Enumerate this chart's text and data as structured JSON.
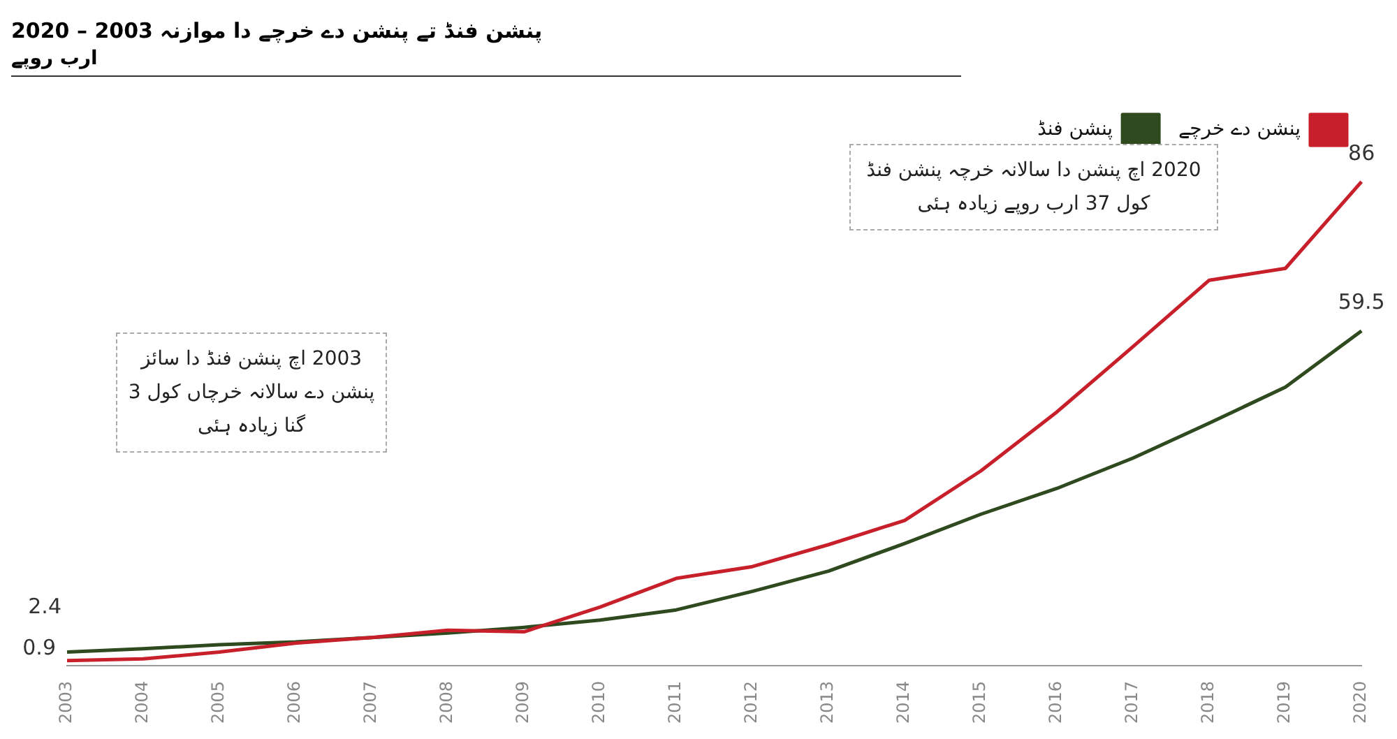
{
  "chart_data": {
    "type": "line",
    "title": "پنشن فنڈ تے پنشن دے خرچے دا موازنہ   2003 – 2020",
    "subtitle": "ارب روپے",
    "categories": [
      "2003",
      "2004",
      "2005",
      "2006",
      "2007",
      "2008",
      "2009",
      "2010",
      "2011",
      "2012",
      "2013",
      "2014",
      "2015",
      "2016",
      "2017",
      "2018",
      "2019",
      "2020"
    ],
    "series": [
      {
        "name": "پنشن دے خرچے",
        "color": "#c8202a",
        "values": [
          0.9,
          1.2,
          2.4,
          4,
          5,
          6.3,
          6,
          10.4,
          15.5,
          17.6,
          21.5,
          25.8,
          34.6,
          45.1,
          56.7,
          68.5,
          70.6,
          86
        ],
        "value_labels": [
          "0.9",
          null,
          null,
          null,
          null,
          null,
          null,
          null,
          null,
          null,
          null,
          null,
          null,
          null,
          null,
          null,
          null,
          "86"
        ]
      },
      {
        "name": "پنشن فنڈ",
        "color": "#2e4a1e",
        "values": [
          2.4,
          3,
          3.7,
          4.2,
          5,
          5.8,
          6.8,
          8.1,
          9.9,
          13.2,
          16.8,
          21.7,
          26.9,
          31.5,
          36.9,
          43.1,
          49.5,
          59.5
        ],
        "value_labels": [
          "2.4",
          null,
          null,
          null,
          null,
          null,
          null,
          null,
          null,
          null,
          null,
          null,
          null,
          null,
          null,
          null,
          null,
          "59.5"
        ]
      }
    ],
    "annotations": [
      "2003 اچ پنشن فنڈ دا سائز پنشن دے سالانہ خرچاں کول 3 گنا زیادہ ہئی",
      "2020 اچ پنشن دا سالانہ خرچہ پنشن فنڈ کول 37 ارب روپے زیادہ ہئی"
    ],
    "legend": "top right",
    "grid": false,
    "marker": "none",
    "line_style": "solid"
  }
}
